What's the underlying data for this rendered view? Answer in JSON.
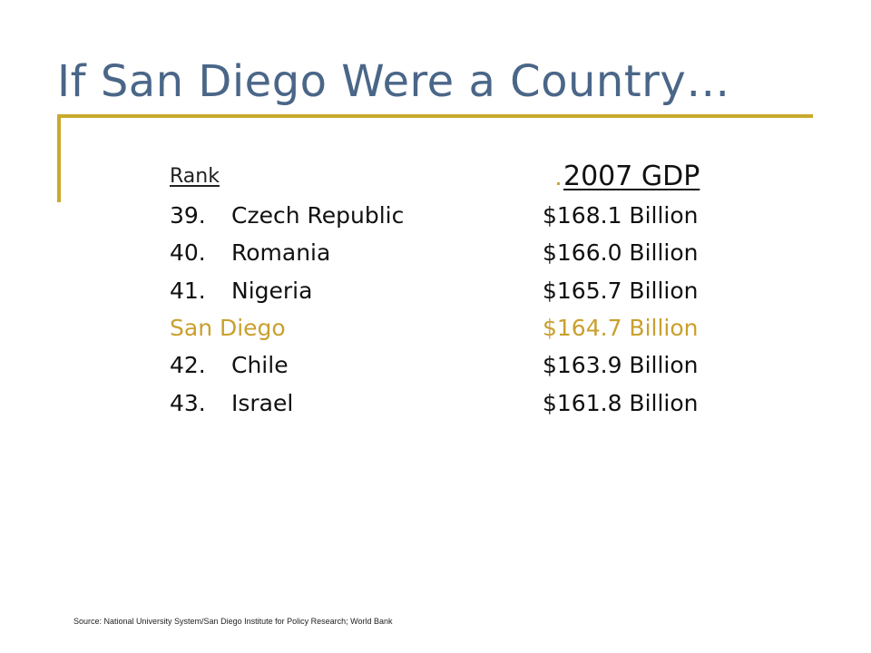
{
  "slide": {
    "title": "If San Diego Were a Country…",
    "rank_header": "Rank",
    "gdp_header": "2007 GDP",
    "rows": [
      {
        "rank": "39.",
        "country": "Czech Republic",
        "gdp": "$168.1 Billion"
      },
      {
        "rank": "40.",
        "country": "Romania",
        "gdp": "$166.0 Billion"
      },
      {
        "rank": "41.",
        "country": "Nigeria",
        "gdp": "$165.7 Billion"
      },
      {
        "label": "San Diego",
        "gdp": "$164.7 Billion"
      },
      {
        "rank": "42.",
        "country": "Chile",
        "gdp": "$163.9 Billion"
      },
      {
        "rank": "43.",
        "country": "Israel",
        "gdp": "$161.8 Billion"
      }
    ],
    "source": "Source: National University System/San Diego Institute for Policy Research; World Bank"
  },
  "colors": {
    "title": "#4a6688",
    "accent": "#c9aa2e",
    "highlight": "#c9a02e"
  }
}
